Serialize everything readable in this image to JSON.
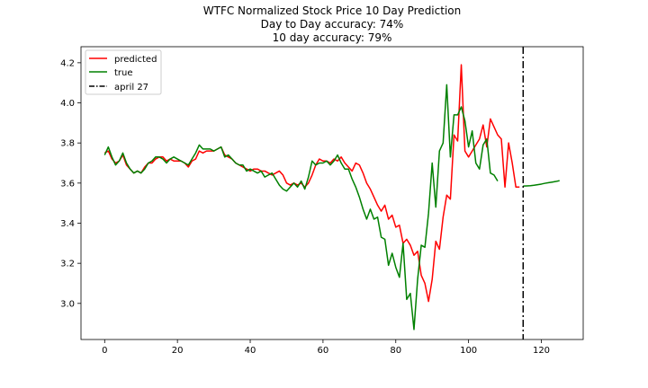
{
  "chart_data": {
    "type": "line",
    "title_lines": [
      "WTFC Normalized Stock Price 10 Day Prediction",
      "Day to Day accuracy: 74%",
      "10 day accuracy: 79%"
    ],
    "xlabel": "",
    "ylabel": "",
    "xlim": [
      -6.5,
      131.5
    ],
    "ylim": [
      2.82,
      4.28
    ],
    "x_ticks": [
      0,
      20,
      40,
      60,
      80,
      100,
      120
    ],
    "y_ticks": [
      3.0,
      3.2,
      3.4,
      3.6,
      3.8,
      4.0,
      4.2
    ],
    "x_tick_labels": [
      "0",
      "20",
      "40",
      "60",
      "80",
      "100",
      "120"
    ],
    "y_tick_labels": [
      "3.0",
      "3.2",
      "3.4",
      "3.6",
      "3.8",
      "4.0",
      "4.2"
    ],
    "grid": false,
    "legend_position": "upper-left",
    "series": [
      {
        "name": "predicted",
        "color": "#ff0000",
        "x_start": 0,
        "values": [
          3.75,
          3.76,
          3.72,
          3.7,
          3.71,
          3.74,
          3.69,
          3.67,
          3.65,
          3.66,
          3.65,
          3.68,
          3.7,
          3.7,
          3.72,
          3.73,
          3.73,
          3.71,
          3.72,
          3.71,
          3.71,
          3.71,
          3.7,
          3.68,
          3.71,
          3.72,
          3.76,
          3.75,
          3.76,
          3.76,
          3.76,
          3.77,
          3.78,
          3.74,
          3.73,
          3.72,
          3.7,
          3.69,
          3.68,
          3.67,
          3.66,
          3.67,
          3.67,
          3.66,
          3.66,
          3.65,
          3.64,
          3.65,
          3.66,
          3.64,
          3.6,
          3.59,
          3.6,
          3.59,
          3.6,
          3.58,
          3.6,
          3.64,
          3.69,
          3.72,
          3.71,
          3.71,
          3.7,
          3.72,
          3.71,
          3.73,
          3.7,
          3.68,
          3.66,
          3.7,
          3.69,
          3.65,
          3.6,
          3.57,
          3.53,
          3.49,
          3.46,
          3.49,
          3.42,
          3.44,
          3.38,
          3.39,
          3.3,
          3.32,
          3.29,
          3.24,
          3.26,
          3.14,
          3.1,
          3.01,
          3.12,
          3.31,
          3.27,
          3.43,
          3.54,
          3.52,
          3.84,
          3.81,
          4.19,
          3.76,
          3.73,
          3.76,
          3.79,
          3.82,
          3.89,
          3.78,
          3.92,
          3.88,
          3.84,
          3.82,
          3.58,
          3.8,
          3.7,
          3.58,
          3.58
        ]
      },
      {
        "name": "true",
        "color": "#008000",
        "x_start": 0,
        "values": [
          3.74,
          3.78,
          3.73,
          3.69,
          3.71,
          3.75,
          3.7,
          3.67,
          3.65,
          3.66,
          3.65,
          3.67,
          3.7,
          3.71,
          3.73,
          3.73,
          3.72,
          3.7,
          3.72,
          3.73,
          3.72,
          3.71,
          3.7,
          3.69,
          3.72,
          3.75,
          3.79,
          3.77,
          3.77,
          3.77,
          3.76,
          3.77,
          3.78,
          3.73,
          3.74,
          3.72,
          3.7,
          3.69,
          3.69,
          3.66,
          3.67,
          3.66,
          3.65,
          3.66,
          3.63,
          3.64,
          3.65,
          3.62,
          3.59,
          3.57,
          3.56,
          3.58,
          3.6,
          3.58,
          3.61,
          3.57,
          3.63,
          3.71,
          3.69,
          3.7,
          3.7,
          3.71,
          3.69,
          3.71,
          3.74,
          3.7,
          3.67,
          3.67,
          3.62,
          3.58,
          3.53,
          3.47,
          3.42,
          3.47,
          3.42,
          3.43,
          3.33,
          3.32,
          3.19,
          3.25,
          3.18,
          3.13,
          3.3,
          3.02,
          3.05,
          2.87,
          3.12,
          3.29,
          3.28,
          3.45,
          3.7,
          3.48,
          3.76,
          3.8,
          4.09,
          3.73,
          3.94,
          3.94,
          3.98,
          3.91,
          3.78,
          3.86,
          3.7,
          3.67,
          3.79,
          3.82,
          3.65,
          3.64,
          3.61
        ]
      },
      {
        "name": "",
        "color": "#008000",
        "x_start": 115,
        "values": [
          3.585,
          3.586,
          3.587,
          3.589,
          3.592,
          3.595,
          3.599,
          3.602,
          3.605,
          3.608,
          3.612
        ]
      }
    ],
    "vlines": [
      {
        "name": "april 27",
        "x": 115,
        "color": "#000000",
        "style": "dash-dot"
      }
    ]
  }
}
